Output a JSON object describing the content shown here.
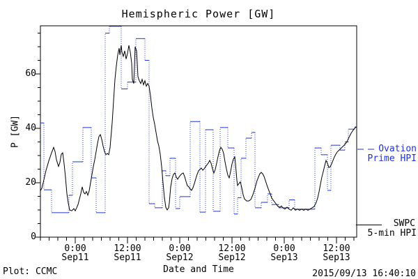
{
  "title": "Hemispheric Power [GW]",
  "axes": {
    "y_label": "P [GW]",
    "x_label": "Date and Time",
    "y_ticks": [
      {
        "label": "0",
        "value": 0
      },
      {
        "label": "20",
        "value": 20
      },
      {
        "label": "40",
        "value": 40
      },
      {
        "label": "60",
        "value": 60
      }
    ],
    "y_minor_step": 5,
    "x_ticks": [
      {
        "time": "0:00",
        "date": "Sep11",
        "t": 0
      },
      {
        "time": "12:00",
        "date": "Sep11",
        "t": 12
      },
      {
        "time": "0:00",
        "date": "Sep12",
        "t": 24
      },
      {
        "time": "12:00",
        "date": "Sep12",
        "t": 36
      },
      {
        "time": "0:00",
        "date": "Sep13",
        "t": 48
      },
      {
        "time": "12:00",
        "date": "Sep13",
        "t": 60
      }
    ],
    "x_minor_step_hours": 2
  },
  "legend": {
    "ovation": {
      "line1": "Ovation",
      "line2": "Prime HPI"
    },
    "swpc": {
      "line1": "SWPC",
      "line2": "5-min HPI"
    }
  },
  "footer": {
    "left": "Plot: CCMC",
    "right": "2015/09/13 16:40:10"
  },
  "colors": {
    "accent_blue": "#2233cc",
    "line_black": "#000000",
    "background": "#ffffff"
  },
  "chart_data": {
    "type": "line",
    "title": "Hemispheric Power [GW]",
    "xlabel": "Date and Time",
    "ylabel": "P [GW]",
    "x_unit": "hours since 2015-09-11 00:00 UT",
    "xlim": [
      -8,
      64.64
    ],
    "ylim": [
      0,
      77.7
    ],
    "grid": false,
    "legend_position": "right-outside",
    "series": [
      {
        "name": "SWPC 5-min HPI",
        "color": "#000000",
        "style": "solid",
        "points": [
          [
            -8,
            17
          ],
          [
            -7.68,
            18
          ],
          [
            -7.36,
            20
          ],
          [
            -6.72,
            24.5
          ],
          [
            -6.08,
            28
          ],
          [
            -5.44,
            31
          ],
          [
            -4.96,
            33
          ],
          [
            -4.64,
            31.5
          ],
          [
            -4.32,
            28.5
          ],
          [
            -3.84,
            26
          ],
          [
            -3.52,
            27.5
          ],
          [
            -3.2,
            30.5
          ],
          [
            -2.88,
            31
          ],
          [
            -2.56,
            27
          ],
          [
            -2.24,
            22
          ],
          [
            -1.92,
            16
          ],
          [
            -1.6,
            12.5
          ],
          [
            -1.28,
            10
          ],
          [
            -0.8,
            9.7
          ],
          [
            -0.32,
            10.5
          ],
          [
            0,
            9.7
          ],
          [
            0.32,
            10.8
          ],
          [
            0.64,
            12
          ],
          [
            0.96,
            14
          ],
          [
            1.28,
            16
          ],
          [
            1.6,
            18.5
          ],
          [
            1.92,
            16.5
          ],
          [
            2.24,
            15.9
          ],
          [
            2.56,
            16.8
          ],
          [
            2.88,
            15.4
          ],
          [
            3.2,
            17
          ],
          [
            3.52,
            20
          ],
          [
            3.84,
            23
          ],
          [
            4.16,
            26
          ],
          [
            4.48,
            28.5
          ],
          [
            4.8,
            31.5
          ],
          [
            5.12,
            34.5
          ],
          [
            5.44,
            37
          ],
          [
            5.76,
            37.7
          ],
          [
            6.08,
            36
          ],
          [
            6.4,
            33.5
          ],
          [
            6.72,
            31.5
          ],
          [
            7.04,
            30.3
          ],
          [
            7.36,
            30.8
          ],
          [
            7.68,
            30.3
          ],
          [
            8,
            33
          ],
          [
            8.16,
            36
          ],
          [
            8.48,
            42
          ],
          [
            8.8,
            50
          ],
          [
            9.12,
            58
          ],
          [
            9.44,
            63
          ],
          [
            9.76,
            67
          ],
          [
            10.08,
            69.5
          ],
          [
            10.24,
            67
          ],
          [
            10.56,
            70.5
          ],
          [
            10.72,
            68
          ],
          [
            11.04,
            66.5
          ],
          [
            11.36,
            68.5
          ],
          [
            11.68,
            65.5
          ],
          [
            12,
            67.5
          ],
          [
            12.32,
            70.5
          ],
          [
            12.64,
            68
          ],
          [
            12.96,
            64
          ],
          [
            13.12,
            58
          ],
          [
            13.44,
            56.5
          ],
          [
            13.6,
            63
          ],
          [
            13.76,
            70
          ],
          [
            14.08,
            68.5
          ],
          [
            14.24,
            64
          ],
          [
            14.4,
            59
          ],
          [
            14.72,
            57.5
          ],
          [
            15.04,
            56.5
          ],
          [
            15.36,
            58
          ],
          [
            15.68,
            56
          ],
          [
            16,
            57.5
          ],
          [
            16.32,
            55.5
          ],
          [
            16.64,
            56.5
          ],
          [
            16.96,
            55.5
          ],
          [
            17.28,
            52
          ],
          [
            17.6,
            47.5
          ],
          [
            17.92,
            44
          ],
          [
            18.24,
            41.5
          ],
          [
            18.56,
            38.5
          ],
          [
            18.88,
            35.5
          ],
          [
            19.2,
            33.5
          ],
          [
            19.52,
            30.5
          ],
          [
            19.84,
            26
          ],
          [
            20.16,
            20
          ],
          [
            20.48,
            14.5
          ],
          [
            20.8,
            11
          ],
          [
            21.12,
            10
          ],
          [
            21.44,
            10.8
          ],
          [
            21.6,
            12.5
          ],
          [
            21.76,
            15.5
          ],
          [
            21.92,
            18.5
          ],
          [
            22.24,
            21.5
          ],
          [
            22.56,
            23.1
          ],
          [
            22.88,
            23.6
          ],
          [
            23.2,
            22.1
          ],
          [
            23.52,
            21.3
          ],
          [
            23.84,
            22.1
          ],
          [
            24.16,
            22.8
          ],
          [
            24.48,
            23.3
          ],
          [
            24.8,
            23.6
          ],
          [
            25.12,
            22.3
          ],
          [
            25.44,
            20.5
          ],
          [
            25.76,
            18.9
          ],
          [
            26.08,
            18.5
          ],
          [
            26.4,
            17.7
          ],
          [
            26.72,
            17.2
          ],
          [
            27.04,
            18.2
          ],
          [
            27.36,
            19.7
          ],
          [
            27.68,
            21.5
          ],
          [
            28,
            23.1
          ],
          [
            28.32,
            24.4
          ],
          [
            28.64,
            24.9
          ],
          [
            28.96,
            25.4
          ],
          [
            29.28,
            24.6
          ],
          [
            29.6,
            25.1
          ],
          [
            29.92,
            25.9
          ],
          [
            30.24,
            26.6
          ],
          [
            30.56,
            27.2
          ],
          [
            30.88,
            28.2
          ],
          [
            31.2,
            27.2
          ],
          [
            31.52,
            25.1
          ],
          [
            31.84,
            23.6
          ],
          [
            32.16,
            24.9
          ],
          [
            32.48,
            27.2
          ],
          [
            32.8,
            29.7
          ],
          [
            33.12,
            31.8
          ],
          [
            33.44,
            33
          ],
          [
            33.76,
            32.3
          ],
          [
            34.08,
            30.8
          ],
          [
            34.4,
            27.7
          ],
          [
            34.72,
            25.1
          ],
          [
            35.04,
            22.8
          ],
          [
            35.36,
            21.8
          ],
          [
            35.68,
            24.1
          ],
          [
            36,
            26.9
          ],
          [
            36.32,
            28.7
          ],
          [
            36.64,
            29.5
          ],
          [
            36.8,
            27
          ],
          [
            36.96,
            24
          ],
          [
            37.12,
            21
          ],
          [
            37.28,
            19
          ],
          [
            37.6,
            19.7
          ],
          [
            37.92,
            20.3
          ],
          [
            38.24,
            18.2
          ],
          [
            38.56,
            15.6
          ],
          [
            38.88,
            14
          ],
          [
            39.36,
            13.3
          ],
          [
            39.84,
            13.3
          ],
          [
            40.32,
            13.8
          ],
          [
            40.8,
            15.6
          ],
          [
            41.28,
            18
          ],
          [
            41.76,
            20.8
          ],
          [
            42.08,
            22.1
          ],
          [
            42.4,
            23.3
          ],
          [
            42.72,
            23.8
          ],
          [
            43.04,
            23.3
          ],
          [
            43.36,
            22.3
          ],
          [
            43.68,
            20.8
          ],
          [
            44.16,
            18.5
          ],
          [
            44.64,
            16.4
          ],
          [
            45.12,
            14.4
          ],
          [
            45.6,
            13.3
          ],
          [
            46.08,
            12.3
          ],
          [
            46.56,
            11.3
          ],
          [
            47.04,
            11
          ],
          [
            47.36,
            11.5
          ],
          [
            47.68,
            10.8
          ],
          [
            48.16,
            10.3
          ],
          [
            48.64,
            11
          ],
          [
            49.12,
            10.3
          ],
          [
            49.6,
            9.9
          ],
          [
            50.08,
            10.8
          ],
          [
            50.56,
            9.9
          ],
          [
            51.04,
            10.3
          ],
          [
            51.52,
            9.9
          ],
          [
            52,
            10.3
          ],
          [
            52.48,
            9.9
          ],
          [
            52.96,
            10.3
          ],
          [
            53.44,
            9.9
          ],
          [
            53.92,
            10.3
          ],
          [
            54.4,
            10.8
          ],
          [
            54.88,
            11.3
          ],
          [
            55.36,
            12.8
          ],
          [
            55.68,
            14.4
          ],
          [
            56,
            16.7
          ],
          [
            56.32,
            19.5
          ],
          [
            56.64,
            22.1
          ],
          [
            56.96,
            24.1
          ],
          [
            57.28,
            26.2
          ],
          [
            57.6,
            28.2
          ],
          [
            57.92,
            27.2
          ],
          [
            58.24,
            25.6
          ],
          [
            58.56,
            25.9
          ],
          [
            58.88,
            26.9
          ],
          [
            59.2,
            28.2
          ],
          [
            59.52,
            29.5
          ],
          [
            59.84,
            30.5
          ],
          [
            60.16,
            31.3
          ],
          [
            60.48,
            31.8
          ],
          [
            60.8,
            32.3
          ],
          [
            61.12,
            32.8
          ],
          [
            61.44,
            33.3
          ],
          [
            61.76,
            33.8
          ],
          [
            62.08,
            34.4
          ],
          [
            62.4,
            35.1
          ],
          [
            62.72,
            36.2
          ],
          [
            63.04,
            37.2
          ],
          [
            63.36,
            38.2
          ],
          [
            63.68,
            39
          ],
          [
            64,
            39.7
          ],
          [
            64.32,
            40.3
          ],
          [
            64.64,
            40.5
          ]
        ]
      },
      {
        "name": "Ovation Prime HPI",
        "color": "#2233cc",
        "style": "step-dotted",
        "steps": [
          [
            -8,
            -7.2,
            42
          ],
          [
            -7.2,
            -5.44,
            17.4
          ],
          [
            -5.44,
            -1.44,
            9
          ],
          [
            -1.44,
            -0.64,
            15.4
          ],
          [
            -0.64,
            1.76,
            27.7
          ],
          [
            1.76,
            3.68,
            40.3
          ],
          [
            3.68,
            4.8,
            21.8
          ],
          [
            4.8,
            6.88,
            9
          ],
          [
            6.88,
            7.84,
            75
          ],
          [
            7.84,
            10.56,
            77.5
          ],
          [
            10.56,
            12,
            54.5
          ],
          [
            12,
            13.92,
            57
          ],
          [
            13.92,
            16,
            73
          ],
          [
            16,
            16.96,
            65
          ],
          [
            16.96,
            18.24,
            12.3
          ],
          [
            18.24,
            20,
            10.8
          ],
          [
            20,
            20.8,
            24.4
          ],
          [
            20.8,
            21.76,
            22.6
          ],
          [
            21.76,
            23.04,
            29
          ],
          [
            23.04,
            24,
            10.5
          ],
          [
            24,
            26.4,
            14.9
          ],
          [
            26.4,
            28.64,
            42.5
          ],
          [
            28.64,
            29.92,
            9.2
          ],
          [
            29.92,
            31.68,
            39.5
          ],
          [
            31.68,
            33.28,
            9.5
          ],
          [
            33.28,
            35.04,
            40.3
          ],
          [
            35.04,
            36.48,
            32.8
          ],
          [
            36.48,
            37.28,
            8.5
          ],
          [
            37.28,
            38.08,
            14.5
          ],
          [
            38.08,
            39.2,
            29
          ],
          [
            39.2,
            40.48,
            36.4
          ],
          [
            40.48,
            41.28,
            38.5
          ],
          [
            41.28,
            42.72,
            10.8
          ],
          [
            42.72,
            44.16,
            12.8
          ],
          [
            44.16,
            45.12,
            15.9
          ],
          [
            45.12,
            46.72,
            12
          ],
          [
            46.72,
            49.12,
            10.8
          ],
          [
            49.12,
            50.4,
            13.7
          ],
          [
            50.4,
            55.04,
            10.3
          ],
          [
            55.04,
            56.48,
            32.8
          ],
          [
            56.48,
            57.92,
            30.3
          ],
          [
            57.92,
            58.72,
            17.2
          ],
          [
            58.72,
            60.8,
            33.8
          ],
          [
            60.8,
            61.92,
            32
          ],
          [
            61.92,
            62.72,
            35
          ],
          [
            62.72,
            64.16,
            39.7
          ],
          [
            64.16,
            64.64,
            40.5
          ]
        ]
      }
    ]
  }
}
